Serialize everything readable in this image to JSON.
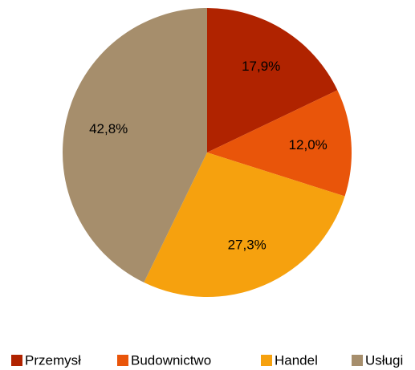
{
  "chart_data": {
    "type": "pie",
    "categories": [
      "Przemysł",
      "Budownictwo",
      "Handel",
      "Usługi"
    ],
    "values": [
      17.9,
      12.0,
      27.3,
      42.8
    ],
    "value_labels": [
      "17,9%",
      "12,0%",
      "27,3%",
      "42,8%"
    ],
    "colors": [
      "#b02300",
      "#e9550a",
      "#f6a10e",
      "#a68e6c"
    ],
    "legend": "bottom"
  }
}
